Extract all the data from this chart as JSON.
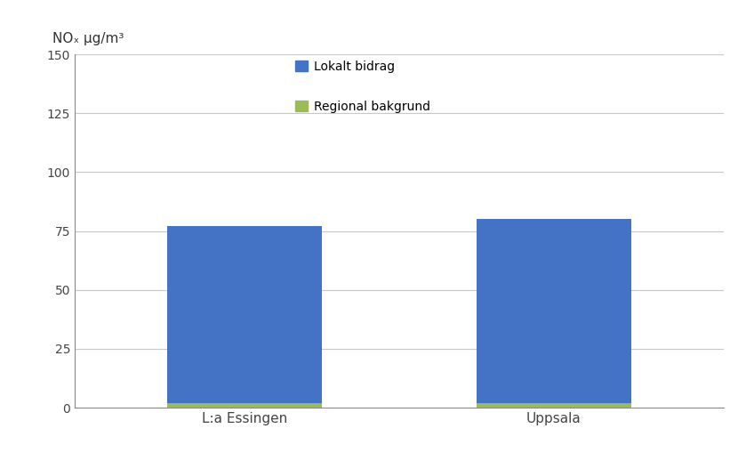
{
  "categories": [
    "L:a Essingen",
    "Uppsala"
  ],
  "lokalt_bidrag": [
    75,
    78
  ],
  "regional_bakgrund": [
    2,
    2
  ],
  "lokalt_color": "#4472C4",
  "regional_color": "#9BBB59",
  "ylabel_title": "NOₓ μg/m³",
  "ylim": [
    0,
    150
  ],
  "yticks": [
    0,
    25,
    50,
    75,
    100,
    125,
    150
  ],
  "legend_lokalt": "Lokalt bidrag",
  "legend_regional": "Regional bakgrund",
  "background_color": "#FFFFFF",
  "grid_color": "#C8C8C8",
  "bar_width": 0.5
}
